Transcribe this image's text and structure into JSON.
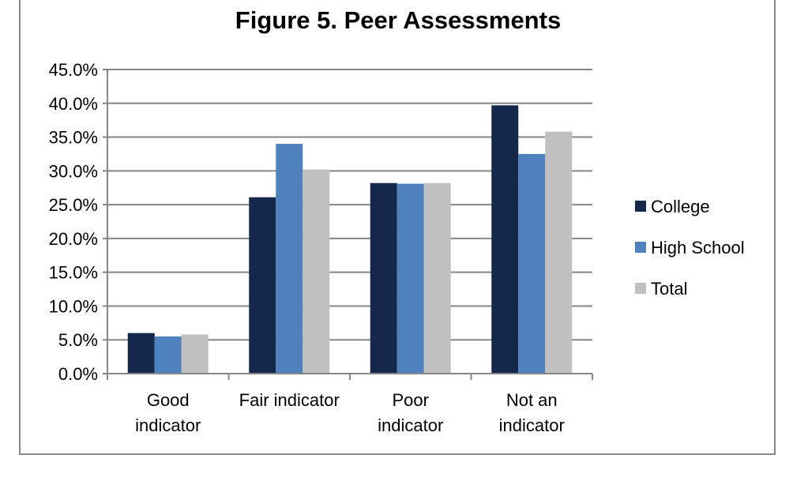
{
  "chart_data": {
    "type": "bar",
    "title": "Figure 5. Peer Assessments",
    "categories": [
      [
        "Good",
        "indicator"
      ],
      [
        "Fair indicator"
      ],
      [
        "Poor",
        "indicator"
      ],
      [
        "Not an",
        "indicator"
      ]
    ],
    "series": [
      {
        "name": "College",
        "color": "#13284a",
        "values": [
          6.0,
          26.1,
          28.2,
          39.7
        ]
      },
      {
        "name": "High School",
        "color": "#4f81bd",
        "values": [
          5.5,
          34.0,
          28.1,
          32.5
        ]
      },
      {
        "name": "Total",
        "color": "#c0c0c0",
        "values": [
          5.8,
          30.2,
          28.2,
          35.8
        ]
      }
    ],
    "y_ticks": [
      "0.0%",
      "5.0%",
      "10.0%",
      "15.0%",
      "20.0%",
      "25.0%",
      "30.0%",
      "35.0%",
      "40.0%",
      "45.0%"
    ],
    "ylim": [
      0,
      45
    ],
    "grid": true,
    "legend_position": "right"
  }
}
